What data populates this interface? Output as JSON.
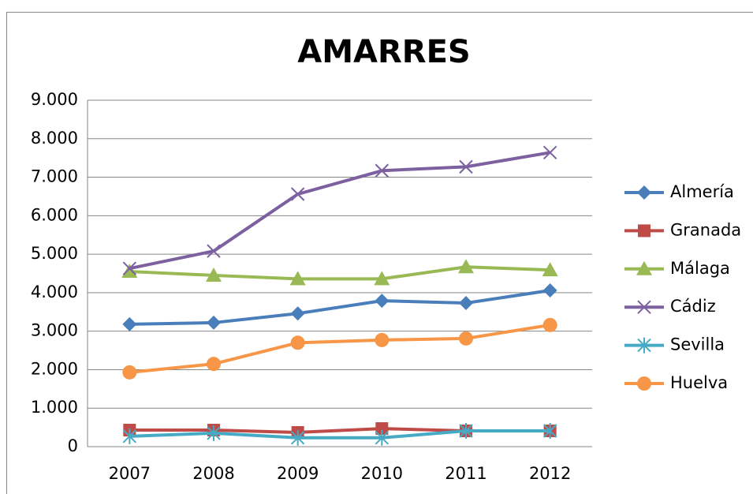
{
  "chart_data": {
    "type": "line",
    "title": "AMARRES",
    "categories": [
      "2007",
      "2008",
      "2009",
      "2010",
      "2011",
      "2012"
    ],
    "series": [
      {
        "name": "Almería",
        "color": "#4a7ebb",
        "marker": "diamond",
        "values": [
          3180,
          3220,
          3460,
          3790,
          3730,
          4060
        ]
      },
      {
        "name": "Granada",
        "color": "#be4b48",
        "marker": "square",
        "values": [
          430,
          430,
          370,
          470,
          410,
          410
        ]
      },
      {
        "name": "Málaga",
        "color": "#98b954",
        "marker": "triangle",
        "values": [
          4550,
          4450,
          4360,
          4360,
          4670,
          4590
        ]
      },
      {
        "name": "Cádiz",
        "color": "#7d60a0",
        "marker": "x",
        "values": [
          4630,
          5080,
          6560,
          7170,
          7270,
          7640
        ]
      },
      {
        "name": "Sevilla",
        "color": "#46aac5",
        "marker": "asterisk",
        "values": [
          270,
          350,
          230,
          230,
          410,
          410
        ]
      },
      {
        "name": "Huelva",
        "color": "#f79646",
        "marker": "circle",
        "values": [
          1930,
          2150,
          2700,
          2770,
          2810,
          3160
        ]
      }
    ],
    "ylim": [
      0,
      9000
    ],
    "yticks": [
      0,
      {
        "value": 1000,
        "label": "1.000"
      },
      {
        "value": 2000,
        "label": "2.000"
      },
      {
        "value": 3000,
        "label": "3.000"
      },
      {
        "value": 4000,
        "label": "4.000"
      },
      {
        "value": 5000,
        "label": "5.000"
      },
      {
        "value": 6000,
        "label": "6.000"
      },
      {
        "value": 7000,
        "label": "7.000"
      },
      {
        "value": 8000,
        "label": "8.000"
      },
      {
        "value": 9000,
        "label": "9.000"
      }
    ],
    "grid": true,
    "legend": "right"
  }
}
